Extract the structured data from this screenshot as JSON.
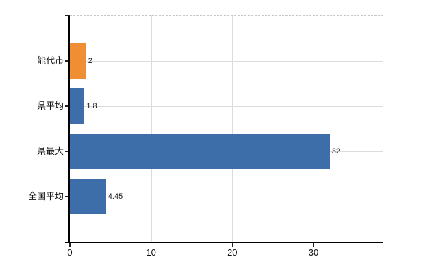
{
  "chart_data": {
    "type": "bar",
    "orientation": "horizontal",
    "title": "",
    "xlabel": "",
    "ylabel": "",
    "categories": [
      "能代市",
      "県平均",
      "県最大",
      "全国平均"
    ],
    "values": [
      2,
      1.8,
      32,
      4.45
    ],
    "value_labels": [
      "2",
      "1.8",
      "32",
      "4.45"
    ],
    "bar_colors": [
      "#EF8E32",
      "#3D6EA9",
      "#3D6EA9",
      "#3D6EA9"
    ],
    "highlight_index": 0,
    "xlim": [
      0,
      38.6
    ],
    "x_ticks": [
      0,
      10,
      20,
      30
    ],
    "x_tick_labels": [
      "0",
      "10",
      "20",
      "30"
    ],
    "grid": "on",
    "legend": "none"
  },
  "colors": {
    "background": "#ffffff",
    "axis": "#000000",
    "grid_horizontal": "#d9ded9",
    "grid_vertical": "#dcdcdc",
    "top_border": "#c6c6c6",
    "text": "#111111",
    "bar_blue": "#3D6EA9",
    "bar_orange": "#EF8E32"
  }
}
